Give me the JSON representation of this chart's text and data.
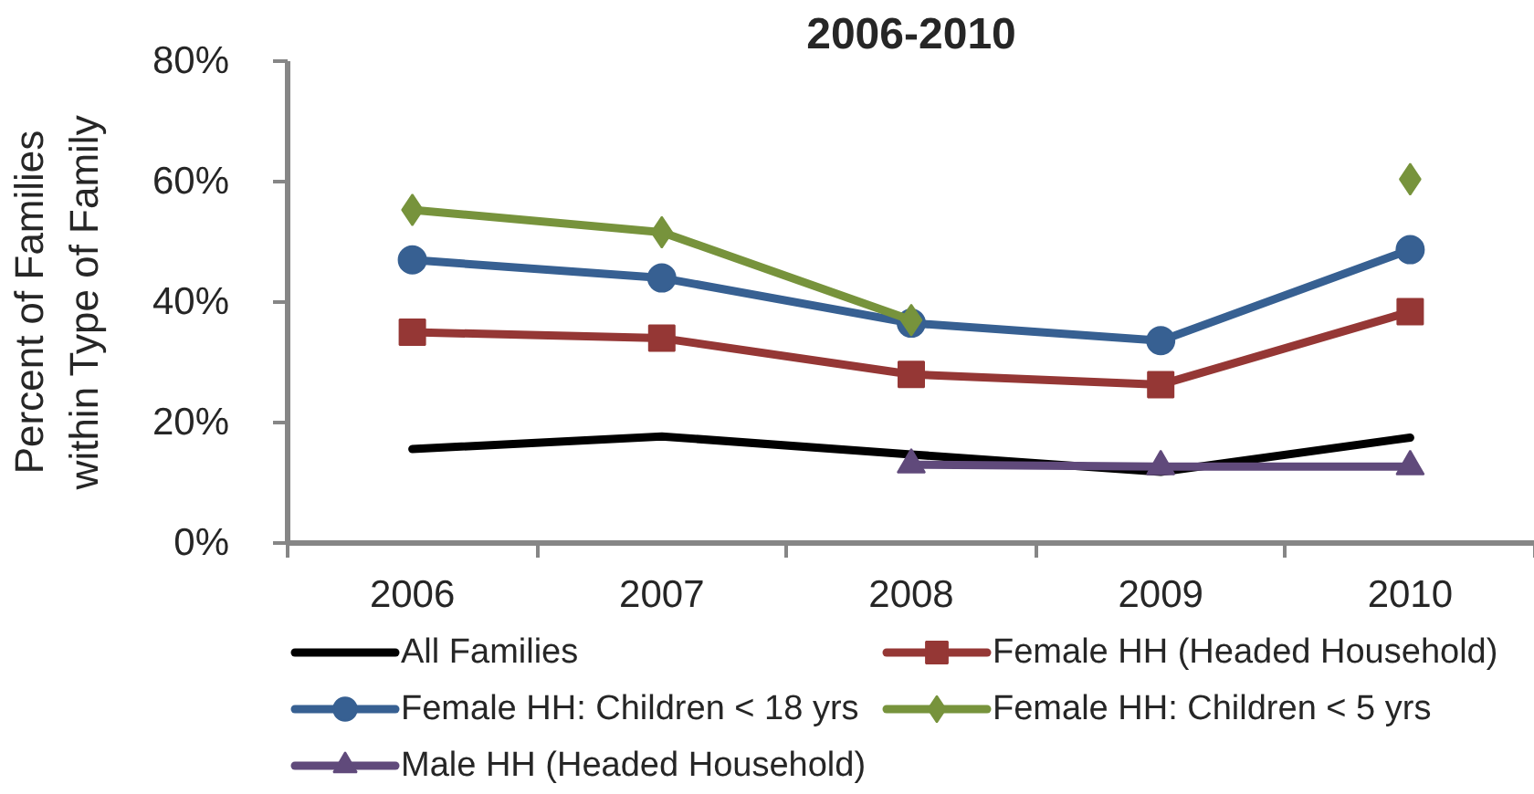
{
  "chart_data": {
    "type": "line",
    "title": "2006-2010",
    "ylabel": "Percent of Families\nwithin Type of Family",
    "categories": [
      "2006",
      "2007",
      "2008",
      "2009",
      "2010"
    ],
    "ylim": [
      0,
      80
    ],
    "yticks": [
      {
        "value": 0,
        "label": "0%"
      },
      {
        "value": 20,
        "label": "20%"
      },
      {
        "value": 40,
        "label": "40%"
      },
      {
        "value": 60,
        "label": "60%"
      },
      {
        "value": 80,
        "label": "80%"
      }
    ],
    "grid": false,
    "legend": "bottom",
    "series": [
      {
        "name": "All Families",
        "color": "#000000",
        "marker": "none",
        "values": [
          15.6,
          17.7,
          14.7,
          11.8,
          17.5
        ]
      },
      {
        "name": "Female HH (Headed Household)",
        "color": "#953735",
        "marker": "square",
        "values": [
          35,
          34,
          28,
          26.3,
          38.4
        ]
      },
      {
        "name": "Female HH: Children < 18 yrs",
        "color": "#376092",
        "marker": "circle",
        "values": [
          47,
          44,
          36.5,
          33.6,
          48.7
        ]
      },
      {
        "name": "Female HH: Children < 5 yrs",
        "color": "#77933c",
        "marker": "diamond",
        "values": [
          55.3,
          51.6,
          37,
          null,
          60.4
        ]
      },
      {
        "name": "Male HH (Headed Household)",
        "color": "#604a7b",
        "marker": "triangle",
        "values": [
          null,
          null,
          13,
          12.7,
          12.7
        ]
      }
    ]
  }
}
